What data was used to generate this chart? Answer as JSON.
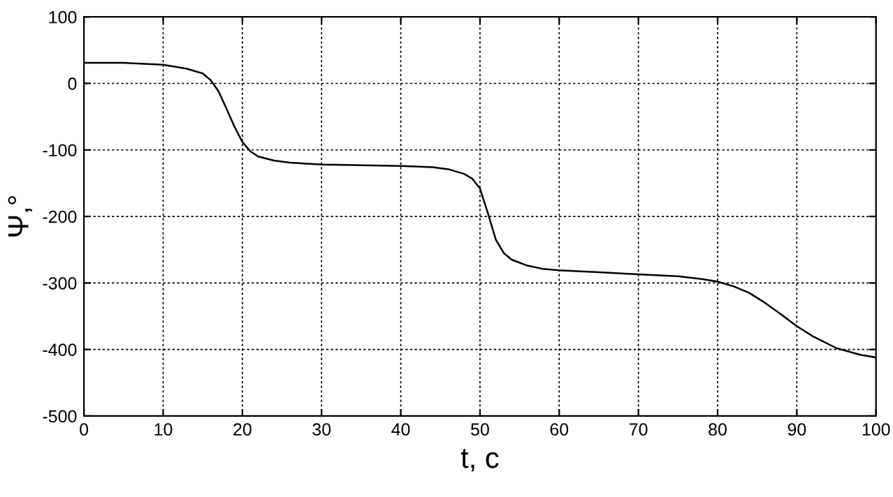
{
  "chart_data": {
    "type": "line",
    "xlabel": "t, c",
    "ylabel": "Ψ,°",
    "x": [
      0,
      5,
      10,
      13,
      15,
      16,
      17,
      18,
      19,
      20,
      21,
      22,
      24,
      26,
      30,
      35,
      40,
      44,
      46,
      48,
      49,
      50,
      51,
      52,
      53,
      54,
      56,
      58,
      60,
      65,
      70,
      75,
      78,
      80,
      82,
      84,
      86,
      88,
      90,
      92,
      95,
      98,
      100
    ],
    "series": [
      {
        "color": "#000000",
        "values": [
          31,
          31,
          28,
          22,
          15,
          5,
          -12,
          -38,
          -65,
          -88,
          -102,
          -110,
          -116,
          -119,
          -122,
          -123,
          -124,
          -126,
          -129,
          -136,
          -143,
          -158,
          -195,
          -235,
          -255,
          -265,
          -274,
          -279,
          -281,
          -284,
          -287,
          -290,
          -294,
          -298,
          -305,
          -315,
          -330,
          -347,
          -365,
          -380,
          -398,
          -408,
          -412
        ]
      }
    ],
    "xlim": [
      0,
      100
    ],
    "ylim": [
      -500,
      100
    ],
    "xticks": [
      0,
      10,
      20,
      30,
      40,
      50,
      60,
      70,
      80,
      90,
      100
    ],
    "yticks": [
      -500,
      -400,
      -300,
      -200,
      -100,
      0,
      100
    ],
    "grid": true,
    "line_style": "solid",
    "marker": "none",
    "legend": false
  }
}
